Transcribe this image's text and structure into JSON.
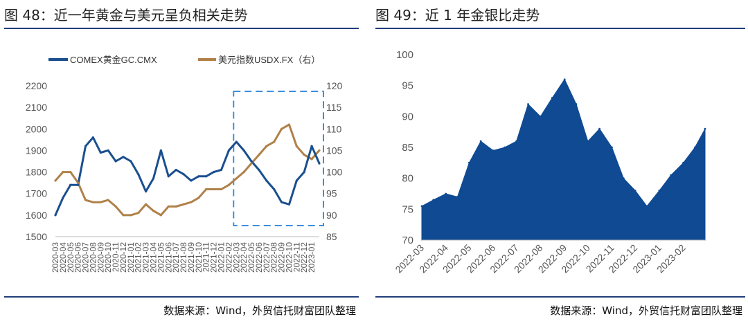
{
  "panels": [
    {
      "title": "图 48：近一年黄金与美元呈负相关走势",
      "source": "数据来源：Wind，外贸信托财富团队整理"
    },
    {
      "title": "图 49：近 1 年金银比走势",
      "source": "数据来源：Wind，外贸信托财富团队整理"
    }
  ],
  "chart_data": [
    {
      "type": "line",
      "title": "",
      "legend_position": "top",
      "x": [
        "2020-03",
        "2020-04",
        "2020-05",
        "2020-06",
        "2020-07",
        "2020-08",
        "2020-09",
        "2020-10",
        "2020-11",
        "2020-12",
        "2021-01",
        "2021-02",
        "2021-03",
        "2021-04",
        "2021-05",
        "2021-06",
        "2021-07",
        "2021-08",
        "2021-09",
        "2021-10",
        "2021-11",
        "2021-12",
        "2022-01",
        "2022-02",
        "2022-03",
        "2022-04",
        "2022-05",
        "2022-06",
        "2022-07",
        "2022-08",
        "2022-09",
        "2022-10",
        "2022-11",
        "2022-12",
        "2023-01",
        "2023-02"
      ],
      "x_tick_labels": [
        "2020-03",
        "2020-04",
        "2020-05",
        "2020-06",
        "2020-07",
        "2020-08",
        "2020-09",
        "2020-10",
        "2020-11",
        "2020-12",
        "2021-01",
        "2021-02",
        "2021-03",
        "2021-04",
        "2021-05",
        "2021-06",
        "2021-07",
        "2021-08",
        "2021-09",
        "2021-10",
        "2021-11",
        "2021-12",
        "2022-01",
        "2022-02",
        "2022-03",
        "2022-04",
        "2022-05",
        "2022-06",
        "2022-07",
        "2022-08",
        "2022-09",
        "2022-10",
        "2022-11",
        "2022-12",
        "2023-01"
      ],
      "series": [
        {
          "name": "COMEX黄金GC.CMX",
          "axis": "left",
          "color": "#1a4f8f",
          "values": [
            1600,
            1680,
            1740,
            1740,
            1920,
            1960,
            1890,
            1900,
            1850,
            1870,
            1850,
            1790,
            1710,
            1770,
            1900,
            1780,
            1810,
            1790,
            1760,
            1780,
            1780,
            1800,
            1810,
            1900,
            1940,
            1900,
            1850,
            1810,
            1760,
            1720,
            1660,
            1650,
            1760,
            1800,
            1920,
            1840
          ]
        },
        {
          "name": "美元指数USDX.FX（右）",
          "axis": "right",
          "color": "#b08148",
          "values": [
            98,
            100,
            100,
            97.5,
            93.5,
            93,
            93,
            93.5,
            92,
            90,
            90,
            90.5,
            92.5,
            91,
            90,
            92,
            92,
            92.5,
            93,
            94,
            96,
            96,
            96,
            97,
            98.5,
            100,
            102,
            104,
            106,
            107,
            110,
            111,
            106,
            104,
            103,
            105
          ]
        }
      ],
      "yleft": {
        "ylim": [
          1500,
          2200
        ],
        "ticks": [
          1500,
          1600,
          1700,
          1800,
          1900,
          2000,
          2100,
          2200
        ]
      },
      "yright": {
        "ylim": [
          85,
          120
        ],
        "ticks": [
          85,
          90,
          95,
          100,
          105,
          110,
          115,
          120
        ]
      },
      "highlight_range": [
        "2022-03",
        "2023-02"
      ]
    },
    {
      "type": "area",
      "title": "",
      "color": "#0f4a92",
      "x": [
        "2022-03-01",
        "2022-03-16",
        "2022-04-01",
        "2022-04-16",
        "2022-05-01",
        "2022-05-16",
        "2022-06-01",
        "2022-06-16",
        "2022-07-01",
        "2022-07-16",
        "2022-08-01",
        "2022-08-16",
        "2022-09-01",
        "2022-09-16",
        "2022-10-01",
        "2022-10-16",
        "2022-11-01",
        "2022-11-16",
        "2022-12-01",
        "2022-12-16",
        "2023-01-01",
        "2023-01-16",
        "2023-02-01",
        "2023-02-16",
        "2023-03-01"
      ],
      "values": [
        75.5,
        76.5,
        77.5,
        77,
        82.5,
        86,
        84.5,
        85,
        86,
        92,
        90,
        93,
        96,
        92,
        86,
        88,
        85,
        80,
        78,
        75.5,
        78,
        80.5,
        82.5,
        85,
        88
      ],
      "x_tick_labels": [
        "2022-03",
        "2022-04",
        "2022-05",
        "2022-06",
        "2022-07",
        "2022-08",
        "2022-09",
        "2022-10",
        "2022-11",
        "2022-12",
        "2023-01",
        "2023-02"
      ],
      "ylim": [
        70,
        100
      ],
      "yticks": [
        70,
        75,
        80,
        85,
        90,
        95,
        100
      ]
    }
  ]
}
